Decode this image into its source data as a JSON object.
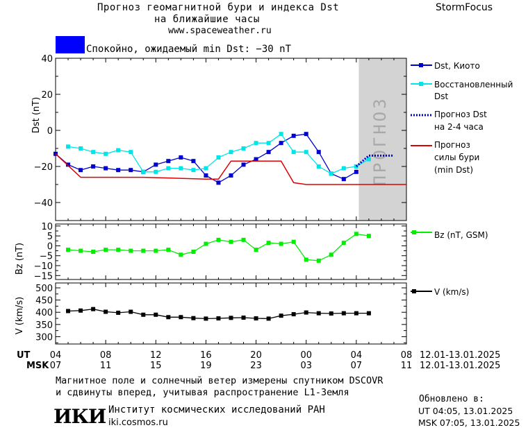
{
  "header": {
    "title_line1": "Прогноз геомагнитной бури и индекса Dst",
    "title_line2": "на ближайшие часы",
    "website": "www.spaceweather.ru",
    "brand": "StormFocus"
  },
  "status": {
    "color": "#0000ff",
    "text": "Спокойно, ожидаемый min Dst: −30 nT"
  },
  "forecast_band_label": "ПРОГНОЗ",
  "colors": {
    "dst_kyoto": "#0000cc",
    "dst_restored": "#00e5e5",
    "dst_forecast": "#0000cc",
    "min_dst_forecast": "#dd0000",
    "bz": "#00ee00",
    "v": "#000000",
    "forecast_band": "#d3d3d3"
  },
  "legend": {
    "dst_kyoto": "Dst, Киото",
    "dst_restored_1": "Восстановленный",
    "dst_restored_2": "Dst",
    "forecast_1": "Прогноз Dst",
    "forecast_2": "на 2-4 часа",
    "storm_1": "Прогноз",
    "storm_2": "силы бури",
    "storm_3": "(min Dst)",
    "bz": "Bz (nT, GSM)",
    "v": "V (km/s)"
  },
  "time_axis": {
    "ut_label": "UT",
    "msk_label": "MSK",
    "ut_ticks": [
      "04",
      "08",
      "12",
      "16",
      "20",
      "00",
      "04",
      "08"
    ],
    "msk_ticks": [
      "07",
      "11",
      "15",
      "19",
      "23",
      "03",
      "07",
      "11"
    ],
    "ut_range": "12.01-13.01.2025",
    "msk_range": "12.01-13.01.2025"
  },
  "footer": {
    "note_line1": "Магнитное поле и солнечный ветер измерены спутником DSCOVR",
    "note_line2": "и сдвинуты вперед, учитывая распространение L1-Земля",
    "logo_text": "ИКИ",
    "institute": "Институт космических исследований РАН",
    "institute_url": "iki.cosmos.ru",
    "updated_label": "Обновлено в:",
    "updated_ut": "UT   04:05, 13.01.2025",
    "updated_msk": "MSK 07:05, 13.01.2025"
  },
  "chart_data": [
    {
      "type": "line",
      "ylabel": "Dst (nT)",
      "xlim": [
        0,
        28
      ],
      "ylim": [
        -50,
        40
      ],
      "yticks": [
        40,
        20,
        0,
        -20,
        -40
      ],
      "forecast_band_x": [
        24.2,
        28
      ],
      "series": [
        {
          "name": "Dst, Киото",
          "x": [
            0,
            1,
            2,
            3,
            4,
            5,
            6,
            7,
            8,
            9,
            10,
            11,
            12,
            13,
            14,
            15,
            16,
            17,
            18,
            19,
            20,
            21,
            22,
            23,
            24
          ],
          "y": [
            -13,
            -19,
            -22,
            -20,
            -21,
            -22,
            -22,
            -23,
            -19,
            -17,
            -15,
            -17,
            -25,
            -29,
            -25,
            -19,
            -16,
            -12,
            -7,
            -3,
            -2,
            -12,
            -24,
            -27,
            -23
          ]
        },
        {
          "name": "Восстановленный Dst",
          "x": [
            1,
            2,
            3,
            4,
            5,
            6,
            7,
            8,
            9,
            10,
            11,
            12,
            13,
            14,
            15,
            16,
            17,
            18,
            19,
            20,
            21,
            22,
            23,
            24,
            25
          ],
          "y": [
            -9,
            -10,
            -12,
            -13,
            -11,
            -12,
            -23,
            -23,
            -21,
            -21,
            -22,
            -21,
            -15,
            -12,
            -10,
            -7,
            -7,
            -2,
            -12,
            -12,
            -20,
            -24,
            -21,
            -20,
            -16
          ]
        },
        {
          "name": "Прогноз Dst на 2-4 часа",
          "x": [
            24,
            25,
            26,
            27
          ],
          "y": [
            -20,
            -14,
            -14,
            -14
          ]
        },
        {
          "name": "Прогноз силы бури (min Dst)",
          "x": [
            0,
            2,
            7,
            12,
            13,
            14,
            15,
            16,
            17,
            18,
            19,
            20,
            28
          ],
          "y": [
            -13,
            -26,
            -26,
            -27,
            -27,
            -17,
            -17,
            -17,
            -17,
            -17,
            -29,
            -30,
            -30
          ]
        }
      ]
    },
    {
      "type": "line",
      "ylabel": "Bz (nT)",
      "xlim": [
        0,
        28
      ],
      "ylim": [
        -17,
        11
      ],
      "yticks": [
        10,
        5,
        0,
        -5,
        -10,
        -15
      ],
      "series": [
        {
          "name": "Bz (nT, GSM)",
          "x": [
            1,
            2,
            3,
            4,
            5,
            6,
            7,
            8,
            9,
            10,
            11,
            12,
            13,
            14,
            15,
            16,
            17,
            18,
            19,
            20,
            21,
            22,
            23,
            24,
            25
          ],
          "y": [
            -2,
            -2.5,
            -3,
            -2,
            -2,
            -2.5,
            -2.5,
            -2.5,
            -2,
            -4.5,
            -3,
            1,
            3,
            2,
            3,
            -2,
            1.5,
            1,
            2,
            -7,
            -7.5,
            -4.5,
            1.5,
            6,
            5
          ]
        }
      ]
    },
    {
      "type": "line",
      "ylabel": "V (km/s)",
      "xlim": [
        0,
        28
      ],
      "ylim": [
        270,
        520
      ],
      "yticks": [
        500,
        450,
        400,
        350,
        300
      ],
      "series": [
        {
          "name": "V (km/s)",
          "x": [
            1,
            2,
            3,
            4,
            5,
            6,
            7,
            8,
            9,
            10,
            11,
            12,
            13,
            14,
            15,
            16,
            17,
            18,
            19,
            20,
            21,
            22,
            23,
            24,
            25
          ],
          "y": [
            405,
            407,
            413,
            402,
            398,
            402,
            390,
            390,
            380,
            380,
            376,
            374,
            375,
            377,
            378,
            375,
            374,
            386,
            392,
            399,
            396,
            395,
            396,
            396,
            396
          ]
        }
      ]
    }
  ]
}
